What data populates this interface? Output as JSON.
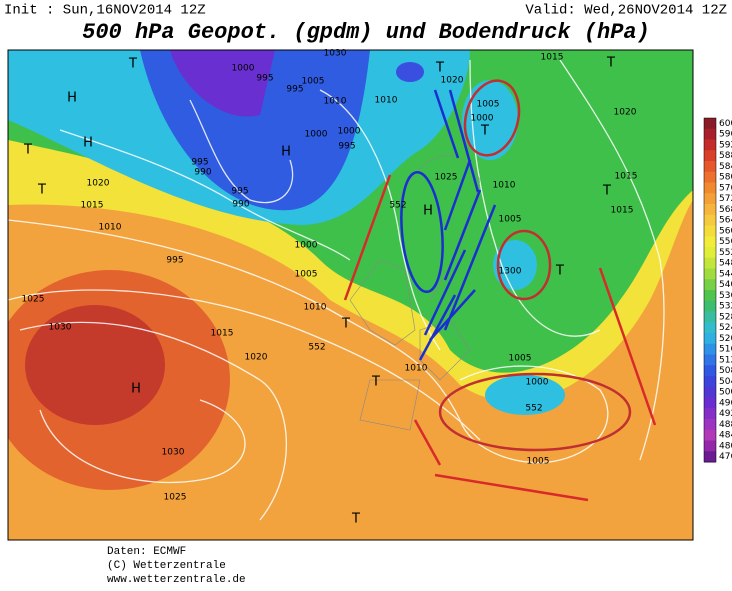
{
  "header": {
    "init": "Init : Sun,16NOV2014 12Z",
    "valid": "Valid: Wed,26NOV2014 12Z",
    "title": "500 hPa Geopot. (gpdm) und Bodendruck (hPa)"
  },
  "map_labels": [
    "T",
    "H",
    "1000",
    "995",
    "1005",
    "995",
    "1030",
    "T",
    "1020",
    "1015",
    "T",
    "1005",
    "1000",
    "T",
    "1010",
    "1010",
    "H",
    "1000",
    "1000",
    "H",
    "995",
    "995",
    "990",
    "1020",
    "1015",
    "T",
    "T",
    "1010",
    "995",
    "990",
    "1025",
    "1010",
    "H",
    "552",
    "1005",
    "T",
    "1015",
    "1020",
    "1015",
    "1000",
    "1005",
    "995",
    "1010",
    "1300",
    "T",
    "1025",
    "1030",
    "1015",
    "1020",
    "552",
    "T",
    "T",
    "1010",
    "1000",
    "1005",
    "552",
    "H",
    "1030",
    "1025",
    "1005",
    "T"
  ],
  "colorbar_ticks": [
    600,
    596,
    592,
    588,
    584,
    580,
    576,
    572,
    568,
    564,
    560,
    556,
    552,
    548,
    544,
    540,
    536,
    532,
    528,
    524,
    520,
    516,
    512,
    508,
    504,
    500,
    496,
    492,
    488,
    484,
    480,
    476
  ],
  "footer": [
    "Daten: ECMWF",
    "(C) Wetterzentrale",
    "www.wetterzentrale.de"
  ]
}
